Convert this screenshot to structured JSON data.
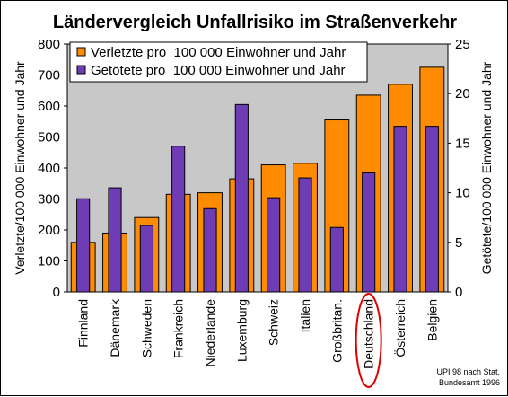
{
  "chart_data": {
    "type": "bar",
    "title": "Ländervergleich Unfallrisiko im Straßenverkehr",
    "categories": [
      "Finnland",
      "Dänemark",
      "Schweden",
      "Frankreich",
      "Niederlande",
      "Luxemburg",
      "Schweiz",
      "Italien",
      "Großbritan.",
      "Deutschland",
      "Österreich",
      "Belgien"
    ],
    "highlighted_category": "Deutschland",
    "series": [
      {
        "name": "Verletzte pro  100 000 Einwohner und Jahr",
        "axis": "left",
        "color": "#FF8C00",
        "values": [
          160,
          190,
          240,
          315,
          320,
          365,
          410,
          415,
          555,
          635,
          670,
          725
        ]
      },
      {
        "name": "Getötete pro  100 000 Einwohner und Jahr",
        "axis": "right",
        "color": "#6E3CB4",
        "values": [
          9.4,
          10.5,
          6.7,
          14.7,
          8.4,
          18.9,
          9.5,
          11.5,
          6.5,
          12.0,
          16.7,
          16.7
        ]
      }
    ],
    "ylabel_left": "Verletzte/100 000 Einwohner und Jahr",
    "ylabel_right": "Getötete/100 000 Einwohner und Jahr",
    "ylim_left": [
      0,
      800
    ],
    "ylim_right": [
      0,
      25
    ],
    "yticks_left": [
      "0",
      "100",
      "200",
      "300",
      "400",
      "500",
      "600",
      "700",
      "800"
    ],
    "yticks_right": [
      "0",
      "5",
      "10",
      "15",
      "20",
      "25"
    ],
    "legend_position": "top-left",
    "source_note": [
      "UPI 98 nach Stat.",
      "Bundesamt 1996"
    ]
  }
}
